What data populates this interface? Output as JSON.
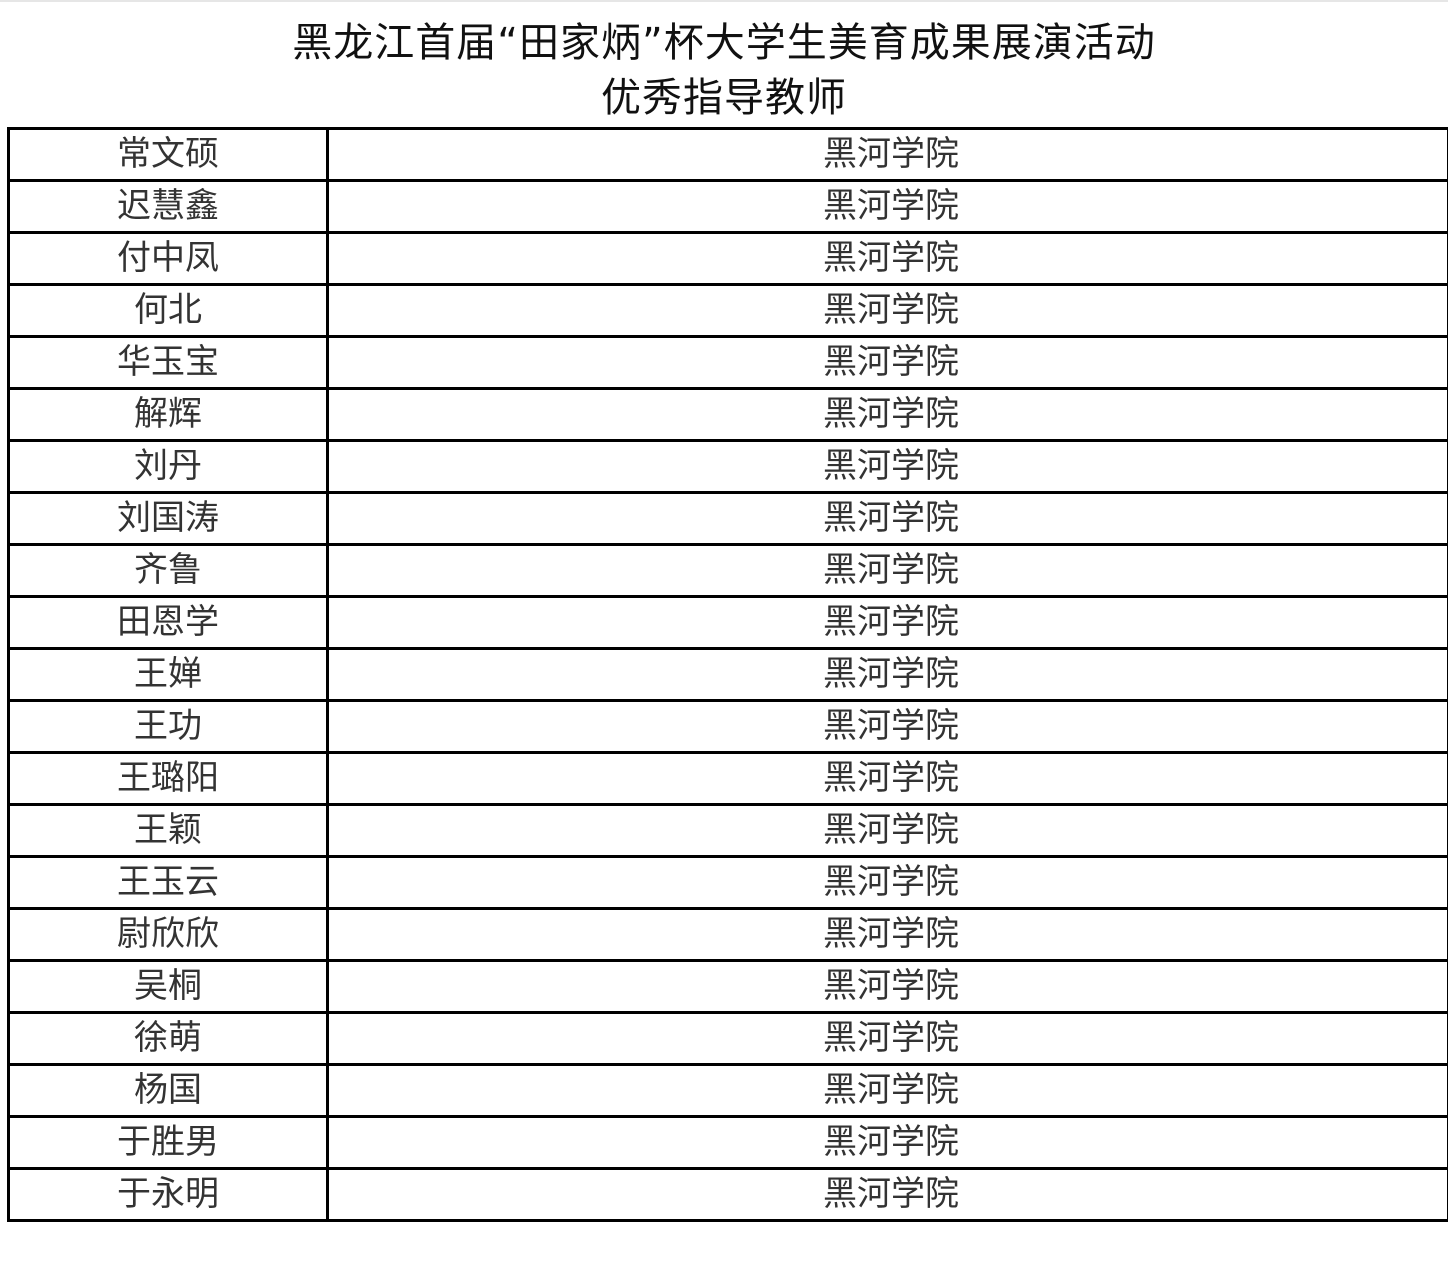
{
  "header": {
    "title_line1": "黑龙江首届“田家炳”杯大学生美育成果展演活动",
    "title_line2": "优秀指导教师"
  },
  "table": {
    "rows": [
      {
        "name": "常文硕",
        "school": "黑河学院"
      },
      {
        "name": "迟慧鑫",
        "school": "黑河学院"
      },
      {
        "name": "付中凤",
        "school": "黑河学院"
      },
      {
        "name": "何北",
        "school": "黑河学院"
      },
      {
        "name": "华玉宝",
        "school": "黑河学院"
      },
      {
        "name": "解辉",
        "school": "黑河学院"
      },
      {
        "name": "刘丹",
        "school": "黑河学院"
      },
      {
        "name": "刘国涛",
        "school": "黑河学院"
      },
      {
        "name": "齐鲁",
        "school": "黑河学院"
      },
      {
        "name": "田恩学",
        "school": "黑河学院"
      },
      {
        "name": "王婵",
        "school": "黑河学院"
      },
      {
        "name": "王功",
        "school": "黑河学院"
      },
      {
        "name": "王璐阳",
        "school": "黑河学院"
      },
      {
        "name": "王颖",
        "school": "黑河学院"
      },
      {
        "name": "王玉云",
        "school": "黑河学院"
      },
      {
        "name": "尉欣欣",
        "school": "黑河学院"
      },
      {
        "name": "吴桐",
        "school": "黑河学院"
      },
      {
        "name": "徐萌",
        "school": "黑河学院"
      },
      {
        "name": "杨国",
        "school": "黑河学院"
      },
      {
        "name": "于胜男",
        "school": "黑河学院"
      },
      {
        "name": "于永明",
        "school": "黑河学院"
      }
    ]
  }
}
